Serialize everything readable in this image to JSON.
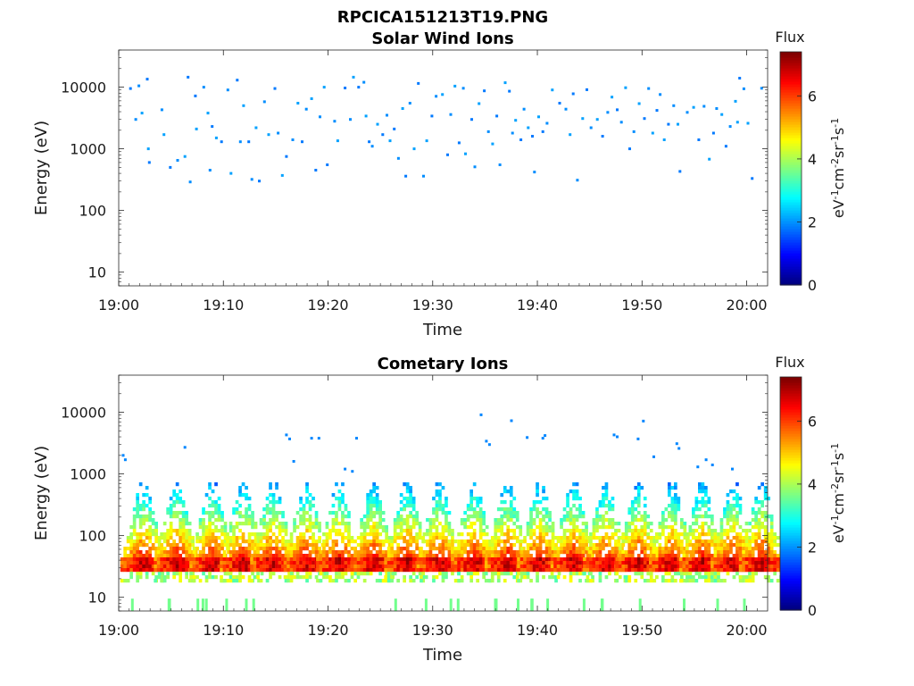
{
  "figure": {
    "title": "RPCICA151213T19.PNG"
  },
  "colorbar": {
    "title": "Flux",
    "unit_main": "eV",
    "unit_parts": [
      {
        "t": "eV",
        "sup": false
      },
      {
        "t": "-1",
        "sup": true
      },
      {
        "t": "cm",
        "sup": false
      },
      {
        "t": "-2",
        "sup": true
      },
      {
        "t": "sr",
        "sup": false
      },
      {
        "t": "-1",
        "sup": true
      },
      {
        "t": "s",
        "sup": false
      },
      {
        "t": "-1",
        "sup": true
      }
    ],
    "range": [
      0,
      7.4
    ],
    "ticks": [
      0,
      2,
      4,
      6
    ],
    "colormap": "jet"
  },
  "chart_data": [
    {
      "type": "heatmap",
      "title": "Solar Wind Ions",
      "xlabel": "Time",
      "ylabel": "Energy (eV)",
      "yscale": "log",
      "ylim": [
        6,
        40000
      ],
      "xlim_minutes": [
        0,
        62
      ],
      "xticks": [
        "19:00",
        "19:10",
        "19:20",
        "19:30",
        "19:40",
        "19:50",
        "20:00"
      ],
      "yticks": [
        10,
        100,
        1000,
        10000
      ],
      "description": "Sparse low-flux (about 2) points scattered between 300 and 15000 eV across the hour",
      "points": [
        [
          1.0,
          9500
        ],
        [
          1.8,
          10500
        ],
        [
          2.1,
          3800
        ],
        [
          2.6,
          13500
        ],
        [
          1.5,
          3000
        ],
        [
          2.7,
          1000
        ],
        [
          2.8,
          600
        ],
        [
          4.0,
          4300
        ],
        [
          4.2,
          1700
        ],
        [
          4.8,
          500
        ],
        [
          5.5,
          650
        ],
        [
          6.2,
          750
        ],
        [
          6.5,
          14500
        ],
        [
          6.7,
          290
        ],
        [
          7.3,
          2100
        ],
        [
          7.2,
          7200
        ],
        [
          8.0,
          10000
        ],
        [
          8.4,
          3800
        ],
        [
          8.8,
          2300
        ],
        [
          8.6,
          450
        ],
        [
          9.2,
          1500
        ],
        [
          9.7,
          1300
        ],
        [
          10.3,
          9000
        ],
        [
          10.6,
          400
        ],
        [
          11.2,
          13000
        ],
        [
          11.5,
          1300
        ],
        [
          11.8,
          5000
        ],
        [
          12.3,
          1300
        ],
        [
          12.6,
          320
        ],
        [
          13.0,
          2200
        ],
        [
          13.3,
          300
        ],
        [
          13.8,
          5800
        ],
        [
          14.2,
          1700
        ],
        [
          14.8,
          9500
        ],
        [
          15.1,
          1800
        ],
        [
          15.5,
          370
        ],
        [
          15.9,
          750
        ],
        [
          16.5,
          1400
        ],
        [
          17.0,
          5500
        ],
        [
          17.4,
          1300
        ],
        [
          17.8,
          4400
        ],
        [
          18.3,
          6500
        ],
        [
          18.7,
          450
        ],
        [
          19.1,
          3300
        ],
        [
          19.5,
          10000
        ],
        [
          19.8,
          550
        ],
        [
          20.5,
          2800
        ],
        [
          20.8,
          1350
        ],
        [
          21.5,
          9700
        ],
        [
          22.0,
          3000
        ],
        [
          22.3,
          14500
        ],
        [
          22.8,
          10000
        ],
        [
          23.3,
          12000
        ],
        [
          23.5,
          3400
        ],
        [
          23.8,
          1300
        ],
        [
          24.1,
          1100
        ],
        [
          24.6,
          2500
        ],
        [
          25.1,
          1700
        ],
        [
          25.5,
          3500
        ],
        [
          25.8,
          1350
        ],
        [
          26.2,
          2100
        ],
        [
          26.6,
          700
        ],
        [
          27.0,
          4500
        ],
        [
          27.3,
          360
        ],
        [
          27.7,
          5500
        ],
        [
          28.1,
          1000
        ],
        [
          28.5,
          11500
        ],
        [
          29.0,
          360
        ],
        [
          29.3,
          1350
        ],
        [
          29.8,
          3400
        ],
        [
          30.2,
          7100
        ],
        [
          30.8,
          7600
        ],
        [
          31.3,
          800
        ],
        [
          31.6,
          3600
        ],
        [
          32.0,
          10400
        ],
        [
          32.4,
          1250
        ],
        [
          32.8,
          9600
        ],
        [
          33.0,
          830
        ],
        [
          33.6,
          3000
        ],
        [
          33.9,
          510
        ],
        [
          34.3,
          5400
        ],
        [
          34.8,
          8700
        ],
        [
          35.2,
          1900
        ],
        [
          35.6,
          1200
        ],
        [
          36.0,
          3400
        ],
        [
          36.3,
          550
        ],
        [
          36.8,
          11800
        ],
        [
          37.2,
          8600
        ],
        [
          37.5,
          1800
        ],
        [
          37.8,
          2900
        ],
        [
          38.3,
          1400
        ],
        [
          38.6,
          4400
        ],
        [
          39.0,
          2200
        ],
        [
          39.4,
          1600
        ],
        [
          39.6,
          420
        ],
        [
          40.0,
          3300
        ],
        [
          40.4,
          1900
        ],
        [
          40.8,
          2600
        ],
        [
          41.3,
          9000
        ],
        [
          42.0,
          5500
        ],
        [
          42.6,
          4400
        ],
        [
          43.0,
          1700
        ],
        [
          43.3,
          7800
        ],
        [
          43.7,
          310
        ],
        [
          44.2,
          3100
        ],
        [
          44.6,
          9100
        ],
        [
          45.0,
          2200
        ],
        [
          45.6,
          3000
        ],
        [
          46.1,
          1600
        ],
        [
          46.6,
          3900
        ],
        [
          47.0,
          6900
        ],
        [
          47.5,
          4300
        ],
        [
          47.9,
          2700
        ],
        [
          48.3,
          9800
        ],
        [
          48.7,
          1000
        ],
        [
          49.1,
          1900
        ],
        [
          49.6,
          5400
        ],
        [
          50.1,
          3100
        ],
        [
          50.5,
          9500
        ],
        [
          50.9,
          1800
        ],
        [
          51.3,
          4200
        ],
        [
          51.6,
          7600
        ],
        [
          52.0,
          1400
        ],
        [
          52.4,
          2500
        ],
        [
          52.9,
          5000
        ],
        [
          53.3,
          2500
        ],
        [
          53.5,
          430
        ],
        [
          54.2,
          3900
        ],
        [
          54.8,
          4700
        ],
        [
          55.3,
          1400
        ],
        [
          55.8,
          4900
        ],
        [
          56.3,
          680
        ],
        [
          56.7,
          1800
        ],
        [
          57.0,
          4500
        ],
        [
          57.5,
          3600
        ],
        [
          57.9,
          1100
        ],
        [
          58.3,
          2300
        ],
        [
          58.8,
          5900
        ],
        [
          59.2,
          14000
        ],
        [
          59.6,
          9400
        ],
        [
          60.0,
          2600
        ],
        [
          60.4,
          330
        ],
        [
          61.3,
          9600
        ],
        [
          59.0,
          2700
        ]
      ]
    },
    {
      "type": "heatmap",
      "title": "Cometary Ions",
      "xlabel": "Time",
      "ylabel": "Energy (eV)",
      "yscale": "log",
      "ylim": [
        6,
        40000
      ],
      "xlim_minutes": [
        0,
        62
      ],
      "xticks": [
        "19:00",
        "19:10",
        "19:20",
        "19:30",
        "19:40",
        "19:50",
        "20:00"
      ],
      "yticks": [
        10,
        100,
        1000,
        10000
      ],
      "description": "Periodic bursts of high-flux ions centred near 30-45 eV, spreading up to several hundred eV",
      "bursts_minutes": [
        2.2,
        5.4,
        8.8,
        11.7,
        14.6,
        17.8,
        20.9,
        24.2,
        27.4,
        30.5,
        33.8,
        37.0,
        40.1,
        43.3,
        46.4,
        49.5,
        52.7,
        55.6,
        58.6,
        61.3
      ],
      "peak_band_eV": [
        28,
        45
      ],
      "sparse_high": [
        [
          0.5,
          1700
        ],
        [
          0.3,
          2000
        ],
        [
          6.2,
          2700
        ],
        [
          15.9,
          4300
        ],
        [
          16.2,
          3700
        ],
        [
          16.6,
          1600
        ],
        [
          18.3,
          3800
        ],
        [
          19.0,
          3800
        ],
        [
          21.5,
          1200
        ],
        [
          22.2,
          1100
        ],
        [
          22.6,
          3800
        ],
        [
          34.5,
          9100
        ],
        [
          35.0,
          3400
        ],
        [
          35.3,
          3000
        ],
        [
          37.4,
          7300
        ],
        [
          38.9,
          3900
        ],
        [
          40.4,
          3800
        ],
        [
          40.6,
          4200
        ],
        [
          47.2,
          4300
        ],
        [
          47.5,
          4000
        ],
        [
          50.0,
          7200
        ],
        [
          49.5,
          3700
        ],
        [
          51.0,
          1900
        ],
        [
          53.2,
          3100
        ],
        [
          53.4,
          2600
        ],
        [
          55.2,
          1300
        ],
        [
          56.0,
          1700
        ],
        [
          56.6,
          1400
        ],
        [
          58.5,
          1200
        ]
      ]
    }
  ]
}
